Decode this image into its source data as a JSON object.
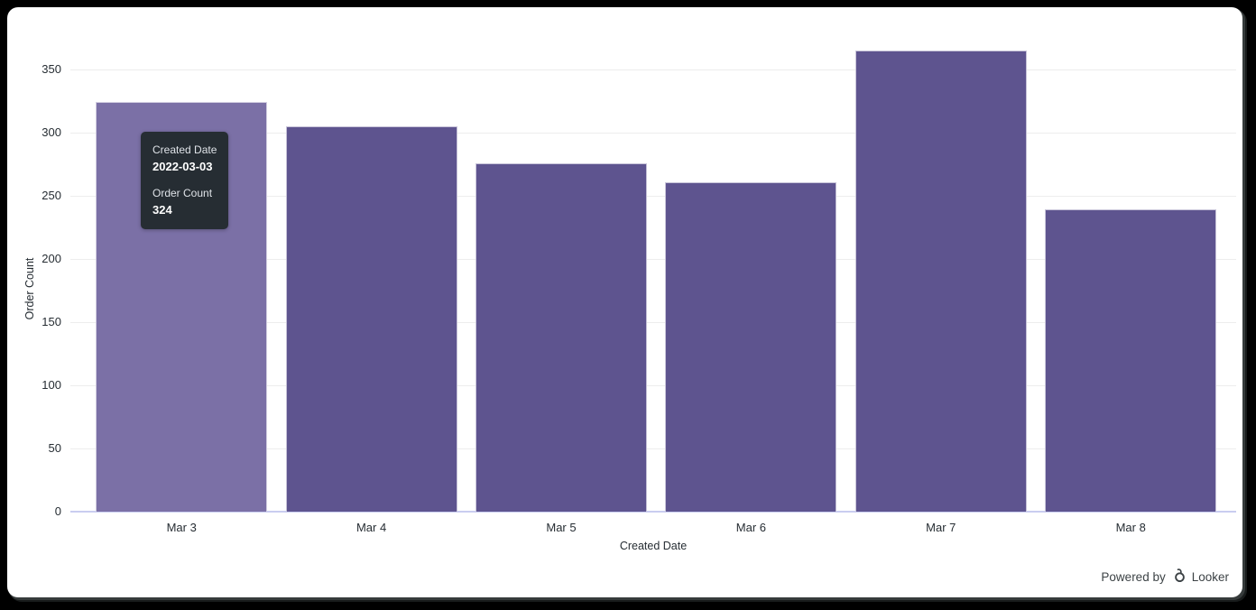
{
  "chart_data": {
    "type": "bar",
    "title": "",
    "categories": [
      "Mar 3",
      "Mar 4",
      "Mar 5",
      "Mar 6",
      "Mar 7",
      "Mar 8"
    ],
    "values": [
      324,
      305,
      276,
      261,
      365,
      239
    ],
    "xlabel": "Created Date",
    "ylabel": "Order Count",
    "ylim": [
      0,
      350
    ],
    "yticks": [
      0,
      50,
      100,
      150,
      200,
      250,
      300,
      350
    ],
    "grid": true,
    "legend_position": "none",
    "highlighted_index": 0,
    "colors": {
      "bar": "#5e548f",
      "bar_highlight": "#7b70a6",
      "gridline": "#ededed",
      "baseline": "#c9cdf0",
      "tick_label": "#262d33",
      "card_bg": "#ffffff",
      "frame_bg": "#000000",
      "tooltip_bg": "#262d33"
    }
  },
  "tooltip": {
    "field1_label": "Created Date",
    "field1_value": "2022-03-03",
    "field2_label": "Order Count",
    "field2_value": "324"
  },
  "footer": {
    "powered_by": "Powered by",
    "brand": "Looker"
  }
}
